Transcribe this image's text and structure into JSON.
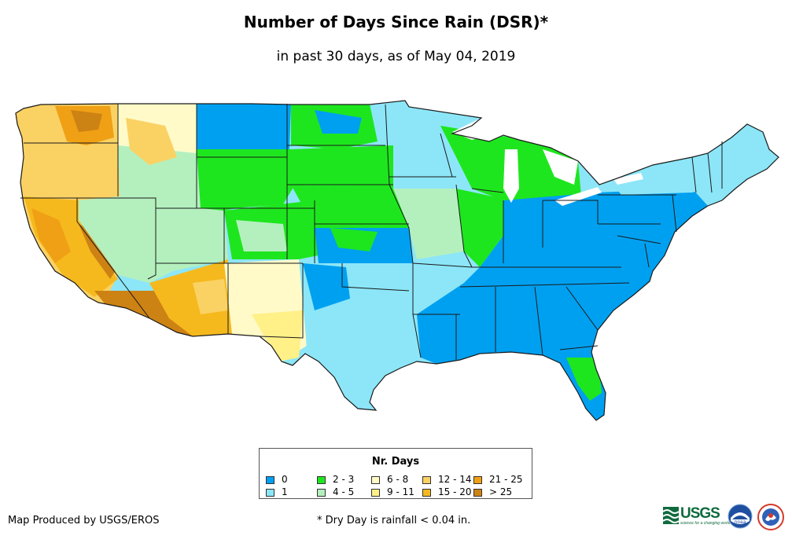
{
  "title": "Number of Days Since Rain (DSR)*",
  "subtitle": "in past 30 days, as of May 04, 2019",
  "legend": {
    "title": "Nr. Days",
    "items": [
      {
        "label": "0",
        "color": "#00a0f0"
      },
      {
        "label": "1",
        "color": "#8ce6f8"
      },
      {
        "label": "2 - 3",
        "color": "#1ee61e"
      },
      {
        "label": "4 - 5",
        "color": "#b4f0be"
      },
      {
        "label": "6 - 8",
        "color": "#fffac8"
      },
      {
        "label": "9 - 11",
        "color": "#fff087"
      },
      {
        "label": "12 - 14",
        "color": "#fad264"
      },
      {
        "label": "15 - 20",
        "color": "#f5b91e"
      },
      {
        "label": "21 - 25",
        "color": "#f0a014"
      },
      {
        "label": "> 25",
        "color": "#cd8214"
      }
    ]
  },
  "footer": {
    "credit": "Map Produced by USGS/EROS",
    "note": "* Dry Day is rainfall < 0.04 in."
  },
  "logos": {
    "usgs_word": "USGS",
    "usgs_tagline": "science for a changing world",
    "noaa_word": "noaa"
  }
}
